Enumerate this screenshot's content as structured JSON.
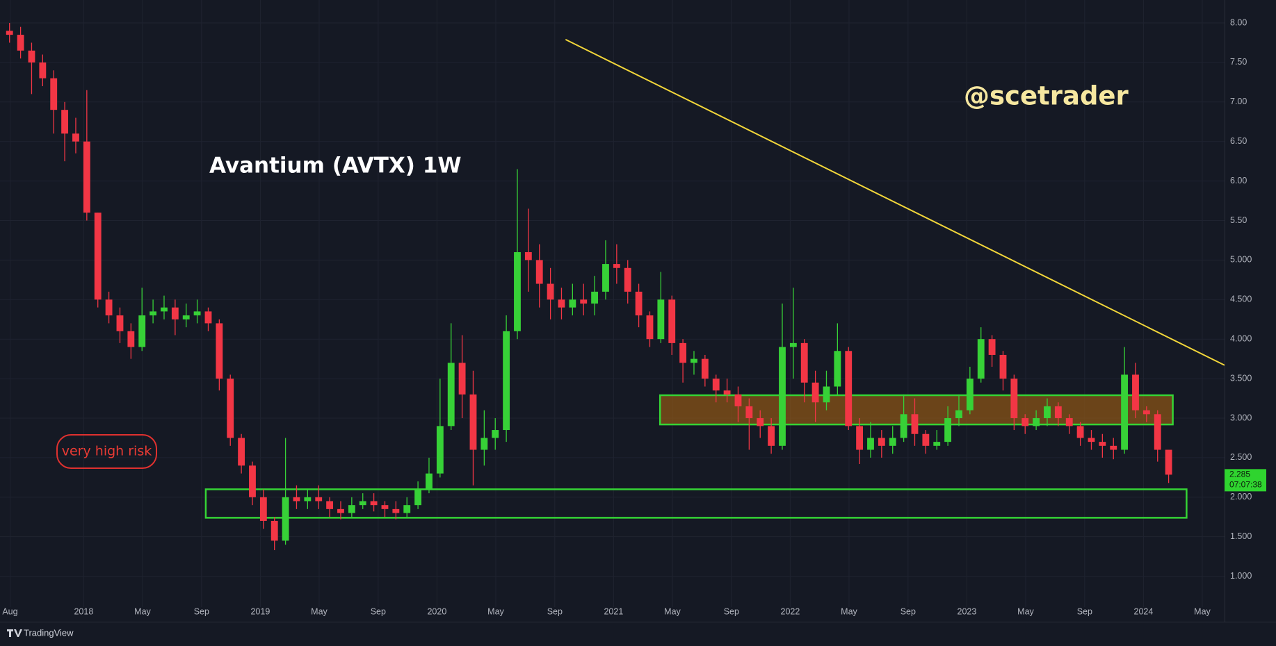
{
  "chart_data": {
    "type": "candlestick",
    "title": "Avantium (AVTX) 1W",
    "watermark": "@scetrader",
    "risk_note": "very high risk",
    "brand": "TradingView",
    "countdown": "07:07:38",
    "up_color": "#37d137",
    "down_color": "#f23645",
    "grid": true,
    "xlim": [
      2017.526,
      2024.459
    ],
    "ylim": [
      0.68,
      8.29
    ],
    "xticks": [
      {
        "value": 2017.583,
        "label": "Aug"
      },
      {
        "value": 2018.0,
        "label": "2018"
      },
      {
        "value": 2018.333,
        "label": "May"
      },
      {
        "value": 2018.667,
        "label": "Sep"
      },
      {
        "value": 2019.0,
        "label": "2019"
      },
      {
        "value": 2019.333,
        "label": "May"
      },
      {
        "value": 2019.667,
        "label": "Sep"
      },
      {
        "value": 2020.0,
        "label": "2020"
      },
      {
        "value": 2020.333,
        "label": "May"
      },
      {
        "value": 2020.667,
        "label": "Sep"
      },
      {
        "value": 2021.0,
        "label": "2021"
      },
      {
        "value": 2021.333,
        "label": "May"
      },
      {
        "value": 2021.667,
        "label": "Sep"
      },
      {
        "value": 2022.0,
        "label": "2022"
      },
      {
        "value": 2022.333,
        "label": "May"
      },
      {
        "value": 2022.667,
        "label": "Sep"
      },
      {
        "value": 2023.0,
        "label": "2023"
      },
      {
        "value": 2023.333,
        "label": "May"
      },
      {
        "value": 2023.667,
        "label": "Sep"
      },
      {
        "value": 2024.0,
        "label": "2024"
      },
      {
        "value": 2024.333,
        "label": "May"
      }
    ],
    "yticks": [
      {
        "value": 8,
        "label": "8.00"
      },
      {
        "value": 7.5,
        "label": "7.50"
      },
      {
        "value": 7,
        "label": "7.00"
      },
      {
        "value": 6.5,
        "label": "6.50"
      },
      {
        "value": 6,
        "label": "6.00"
      },
      {
        "value": 5.5,
        "label": "5.50"
      },
      {
        "value": 5,
        "label": "5.000"
      },
      {
        "value": 4.5,
        "label": "4.500"
      },
      {
        "value": 4,
        "label": "4.000"
      },
      {
        "value": 3.5,
        "label": "3.500"
      },
      {
        "value": 3,
        "label": "3.000"
      },
      {
        "value": 2.5,
        "label": "2.500"
      },
      {
        "value": 2,
        "label": "2.000"
      },
      {
        "value": 1.5,
        "label": "1.500"
      },
      {
        "value": 1,
        "label": "1.000"
      }
    ],
    "x": [
      2017.58,
      2017.6425,
      2017.705,
      2017.7675,
      2017.83,
      2017.8925,
      2017.955,
      2018.0175,
      2018.08,
      2018.1425,
      2018.205,
      2018.2675,
      2018.33,
      2018.3925,
      2018.455,
      2018.5175,
      2018.58,
      2018.6425,
      2018.705,
      2018.7675,
      2018.83,
      2018.8925,
      2018.955,
      2019.0175,
      2019.08,
      2019.1425,
      2019.205,
      2019.2675,
      2019.33,
      2019.3925,
      2019.455,
      2019.5175,
      2019.58,
      2019.6425,
      2019.705,
      2019.7675,
      2019.83,
      2019.8925,
      2019.955,
      2020.0175,
      2020.08,
      2020.1425,
      2020.205,
      2020.2675,
      2020.33,
      2020.3925,
      2020.455,
      2020.5175,
      2020.58,
      2020.6425,
      2020.705,
      2020.7675,
      2020.83,
      2020.8925,
      2020.955,
      2021.0175,
      2021.08,
      2021.1425,
      2021.205,
      2021.2675,
      2021.33,
      2021.3925,
      2021.455,
      2021.5175,
      2021.58,
      2021.6425,
      2021.705,
      2021.7675,
      2021.83,
      2021.8925,
      2021.955,
      2022.0175,
      2022.08,
      2022.1425,
      2022.205,
      2022.2675,
      2022.33,
      2022.3925,
      2022.455,
      2022.5175,
      2022.58,
      2022.6425,
      2022.705,
      2022.7675,
      2022.83,
      2022.8925,
      2022.955,
      2023.0175,
      2023.08,
      2023.1425,
      2023.205,
      2023.2675,
      2023.33,
      2023.3925,
      2023.455,
      2023.5175,
      2023.58,
      2023.6425,
      2023.705,
      2023.7675,
      2023.83,
      2023.8925,
      2023.955,
      2024.0175,
      2024.08,
      2024.1425
    ],
    "open": [
      7.9,
      7.85,
      7.65,
      7.5,
      7.3,
      6.9,
      6.6,
      6.5,
      5.6,
      4.5,
      4.3,
      4.1,
      3.9,
      4.3,
      4.35,
      4.4,
      4.25,
      4.3,
      4.35,
      4.2,
      3.5,
      2.75,
      2.4,
      2.0,
      1.7,
      1.45,
      2.0,
      1.95,
      2.0,
      1.95,
      1.85,
      1.8,
      1.9,
      1.95,
      1.9,
      1.85,
      1.8,
      1.9,
      2.1,
      2.3,
      2.9,
      3.7,
      3.3,
      2.6,
      2.75,
      2.85,
      4.1,
      5.1,
      5.0,
      4.7,
      4.5,
      4.4,
      4.5,
      4.45,
      4.6,
      4.95,
      4.9,
      4.6,
      4.3,
      4.0,
      4.5,
      3.95,
      3.7,
      3.75,
      3.5,
      3.35,
      3.3,
      3.15,
      3.0,
      2.9,
      2.65,
      3.9,
      3.95,
      3.45,
      3.2,
      3.4,
      3.85,
      2.9,
      2.6,
      2.75,
      2.65,
      2.75,
      3.05,
      2.8,
      2.65,
      2.7,
      3.0,
      3.1,
      3.5,
      4.0,
      3.8,
      3.5,
      3.0,
      2.9,
      3.0,
      3.15,
      3.0,
      2.9,
      2.75,
      2.7,
      2.65,
      2.6,
      3.55,
      3.1,
      3.05,
      2.6
    ],
    "high": [
      8.0,
      7.95,
      7.75,
      7.6,
      7.4,
      7.0,
      6.8,
      7.15,
      5.6,
      4.6,
      4.4,
      4.2,
      4.65,
      4.5,
      4.55,
      4.5,
      4.45,
      4.5,
      4.4,
      4.25,
      3.55,
      2.8,
      2.45,
      2.1,
      1.75,
      2.75,
      2.15,
      2.1,
      2.15,
      2.0,
      1.95,
      2.0,
      2.05,
      2.05,
      1.95,
      1.95,
      2.0,
      2.2,
      2.5,
      3.5,
      4.2,
      4.05,
      3.6,
      3.1,
      3.0,
      4.3,
      6.15,
      5.65,
      5.2,
      4.9,
      4.65,
      4.7,
      4.7,
      4.8,
      5.25,
      5.2,
      5.0,
      4.7,
      4.35,
      4.85,
      4.55,
      4.0,
      3.85,
      3.8,
      3.55,
      3.5,
      3.4,
      3.25,
      3.1,
      3.0,
      4.45,
      4.65,
      4.0,
      3.6,
      3.6,
      4.2,
      3.9,
      3.0,
      2.95,
      2.85,
      2.9,
      3.3,
      3.25,
      2.85,
      2.85,
      3.15,
      3.3,
      3.65,
      4.15,
      4.05,
      3.85,
      3.55,
      3.05,
      3.1,
      3.25,
      3.2,
      3.05,
      2.95,
      2.85,
      2.8,
      2.75,
      3.9,
      3.7,
      3.15,
      3.1,
      2.6
    ],
    "low": [
      7.75,
      7.55,
      7.1,
      7.2,
      6.6,
      6.25,
      6.35,
      5.5,
      4.4,
      4.2,
      3.95,
      3.75,
      3.85,
      4.2,
      4.25,
      4.05,
      4.15,
      4.2,
      4.1,
      3.35,
      2.65,
      2.3,
      1.9,
      1.6,
      1.33,
      1.4,
      1.85,
      1.85,
      1.85,
      1.75,
      1.72,
      1.75,
      1.85,
      1.82,
      1.75,
      1.72,
      1.75,
      1.85,
      2.05,
      2.25,
      2.85,
      3.0,
      2.15,
      2.4,
      2.6,
      2.7,
      4.0,
      4.6,
      4.4,
      4.25,
      4.25,
      4.3,
      4.3,
      4.3,
      4.5,
      4.7,
      4.45,
      4.15,
      3.9,
      3.95,
      3.8,
      3.45,
      3.55,
      3.4,
      3.2,
      3.2,
      2.95,
      2.6,
      2.75,
      2.55,
      2.6,
      3.5,
      3.2,
      2.95,
      3.1,
      3.3,
      2.85,
      2.42,
      2.5,
      2.5,
      2.55,
      2.7,
      2.65,
      2.55,
      2.6,
      2.65,
      2.9,
      3.05,
      3.45,
      3.65,
      3.35,
      2.85,
      2.8,
      2.85,
      2.9,
      2.9,
      2.8,
      2.65,
      2.6,
      2.5,
      2.48,
      2.55,
      3.0,
      2.95,
      2.45,
      2.18
    ],
    "close": [
      7.85,
      7.65,
      7.5,
      7.3,
      6.9,
      6.6,
      6.5,
      5.6,
      4.5,
      4.3,
      4.1,
      3.9,
      4.3,
      4.35,
      4.4,
      4.25,
      4.3,
      4.35,
      4.2,
      3.5,
      2.75,
      2.4,
      2.0,
      1.7,
      1.45,
      2.0,
      1.95,
      2.0,
      1.95,
      1.85,
      1.8,
      1.9,
      1.95,
      1.9,
      1.85,
      1.8,
      1.9,
      2.1,
      2.3,
      2.9,
      3.7,
      3.3,
      2.6,
      2.75,
      2.85,
      4.1,
      5.1,
      5.0,
      4.7,
      4.5,
      4.4,
      4.5,
      4.45,
      4.6,
      4.95,
      4.9,
      4.6,
      4.3,
      4.0,
      4.5,
      3.95,
      3.7,
      3.75,
      3.5,
      3.35,
      3.3,
      3.15,
      3.0,
      2.9,
      2.65,
      3.9,
      3.95,
      3.45,
      3.2,
      3.4,
      3.85,
      2.9,
      2.6,
      2.75,
      2.65,
      2.75,
      3.05,
      2.8,
      2.65,
      2.7,
      3.0,
      3.1,
      3.5,
      4.0,
      3.8,
      3.5,
      3.0,
      2.9,
      3.0,
      3.15,
      3.0,
      2.9,
      2.75,
      2.7,
      2.65,
      2.6,
      3.55,
      3.1,
      3.05,
      2.6,
      2.285
    ],
    "trendline": {
      "x": [
        2020.728,
        2024.459
      ],
      "y": [
        7.79,
        3.67
      ],
      "color": "#f2d63a"
    },
    "boxes": [
      {
        "x": [
          2021.263,
          2024.166
        ],
        "y": [
          3.29,
          2.92
        ],
        "border_color": "#35d435",
        "fill_color": "rgba(160,95,20,0.62)"
      },
      {
        "x": [
          2018.691,
          2024.244
        ],
        "y": [
          2.1,
          1.74
        ],
        "border_color": "#35d435",
        "fill_color": "none"
      }
    ]
  }
}
